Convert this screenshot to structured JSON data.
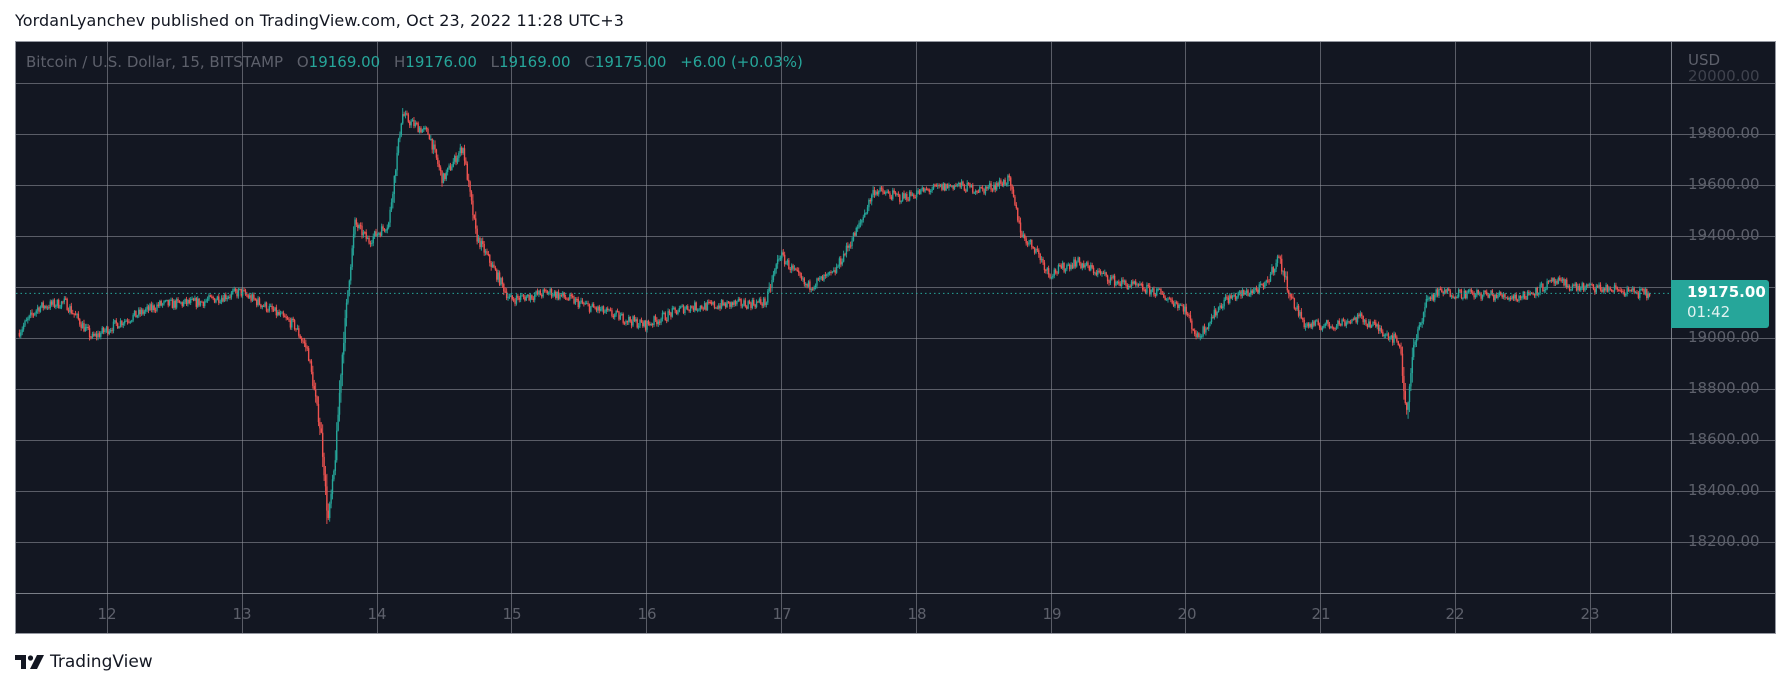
{
  "header": {
    "published_line": "YordanLyanchev published on TradingView.com, Oct 23, 2022 11:28 UTC+3"
  },
  "legend": {
    "symbol": "Bitcoin / U.S. Dollar, 15, BITSTAMP",
    "open_key": "O",
    "open": "19169.00",
    "high_key": "H",
    "high": "19176.00",
    "low_key": "L",
    "low": "19169.00",
    "close_key": "C",
    "close": "19175.00",
    "change": "+6.00 (+0.03%)"
  },
  "price_axis": {
    "currency": "USD",
    "labels": [
      "20000.00",
      "19800.00",
      "19600.00",
      "19400.00",
      "19000.00",
      "18800.00",
      "18600.00",
      "18400.00",
      "18200.00"
    ],
    "last_price": "19175.00",
    "countdown": "01:42"
  },
  "time_axis": {
    "labels": [
      "12",
      "13",
      "14",
      "15",
      "16",
      "17",
      "18",
      "19",
      "20",
      "21",
      "22",
      "23"
    ]
  },
  "footer": {
    "brand": "TradingView"
  },
  "colors": {
    "background": "#131722",
    "grid": "#9598a1",
    "up": "#26a69a",
    "down": "#ef5350",
    "axis_text": "#5d606b",
    "last_price_box": "#26a69a"
  },
  "chart_data": {
    "type": "candlestick",
    "title": "Bitcoin / U.S. Dollar, 15, BITSTAMP",
    "xlabel": "",
    "ylabel": "USD",
    "interval": "15m",
    "x_ticks": [
      "12",
      "13",
      "14",
      "15",
      "16",
      "17",
      "18",
      "19",
      "20",
      "21",
      "22",
      "23"
    ],
    "y_ticks": [
      18200,
      18400,
      18600,
      18800,
      19000,
      19200,
      19400,
      19600,
      19800,
      20000
    ],
    "ylim": [
      18050,
      20050
    ],
    "grid": true,
    "last_price": 19175.0,
    "ohlc_last": {
      "open": 19169.0,
      "high": 19176.0,
      "low": 19169.0,
      "close": 19175.0,
      "change": 6.0,
      "change_pct": 0.03
    },
    "approx_close_path": {
      "note": "day index (12 = Oct 12 00:00) vs approximate price, read from chart",
      "x": [
        11.35,
        11.5,
        11.7,
        11.9,
        12.1,
        12.4,
        12.7,
        13.0,
        13.2,
        13.4,
        13.5,
        13.6,
        13.65,
        13.7,
        13.75,
        13.8,
        13.85,
        13.95,
        14.1,
        14.2,
        14.25,
        14.4,
        14.5,
        14.65,
        14.75,
        14.9,
        15.0,
        15.3,
        15.6,
        16.0,
        16.3,
        16.9,
        17.0,
        17.2,
        17.4,
        17.6,
        17.7,
        17.9,
        18.1,
        18.3,
        18.5,
        18.7,
        18.8,
        18.9,
        19.0,
        19.2,
        19.5,
        19.8,
        20.0,
        20.1,
        20.3,
        20.6,
        20.7,
        20.8,
        20.9,
        21.1,
        21.3,
        21.5,
        21.6,
        21.65,
        21.7,
        21.8,
        21.9,
        22.2,
        22.5,
        22.75,
        22.9,
        23.2,
        23.45
      ],
      "y": [
        19020,
        19120,
        19140,
        19000,
        19060,
        19130,
        19140,
        19180,
        19120,
        19050,
        18950,
        18620,
        18280,
        18500,
        18900,
        19200,
        19450,
        19380,
        19450,
        19880,
        19850,
        19800,
        19620,
        19750,
        19400,
        19250,
        19150,
        19180,
        19120,
        19050,
        19120,
        19140,
        19330,
        19200,
        19250,
        19450,
        19580,
        19550,
        19580,
        19600,
        19580,
        19620,
        19400,
        19350,
        19250,
        19300,
        19220,
        19180,
        19120,
        19000,
        19150,
        19200,
        19320,
        19150,
        19050,
        19050,
        19080,
        19020,
        18980,
        18700,
        18950,
        19150,
        19180,
        19170,
        19160,
        19220,
        19200,
        19190,
        19170
      ]
    }
  }
}
